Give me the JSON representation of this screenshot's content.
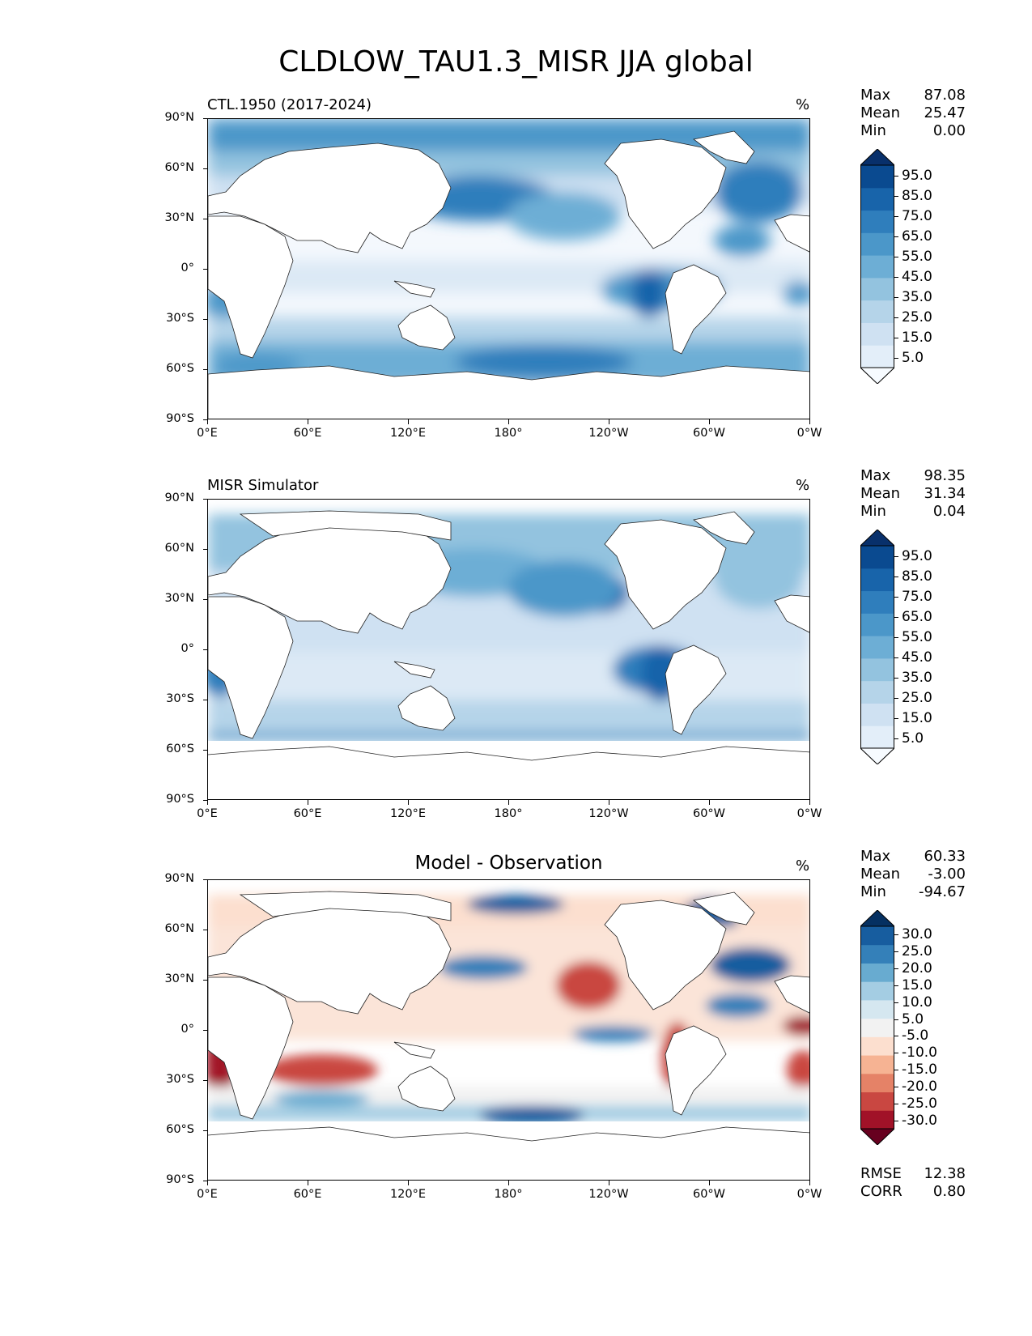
{
  "figure": {
    "title": "CLDLOW_TAU1.3_MISR JJA global"
  },
  "axes": {
    "lat_ticks": [
      "90°N",
      "60°N",
      "30°N",
      "0°",
      "30°S",
      "60°S",
      "90°S"
    ],
    "lon_ticks": [
      "0°E",
      "60°E",
      "120°E",
      "180°",
      "120°W",
      "60°W",
      "0°W"
    ]
  },
  "panels": [
    {
      "label": "CTL.1950 (2017-2024)",
      "center_title": "",
      "units": "%",
      "stats": {
        "max_label": "Max",
        "max": "87.08",
        "mean_label": "Mean",
        "mean": "25.47",
        "min_label": "Min",
        "min": "0.00"
      },
      "colorbar": {
        "labels": [
          "95.0",
          "85.0",
          "75.0",
          "65.0",
          "55.0",
          "45.0",
          "35.0",
          "25.0",
          "15.0",
          "5.0"
        ],
        "colors": [
          "#f7fbff",
          "#e3eef9",
          "#cfe1f2",
          "#b5d4e9",
          "#93c3df",
          "#6daed5",
          "#4b97c9",
          "#2f7ebc",
          "#1864aa",
          "#0a4a90",
          "#08306b"
        ]
      }
    },
    {
      "label": "MISR Simulator",
      "center_title": "",
      "units": "%",
      "stats": {
        "max_label": "Max",
        "max": "98.35",
        "mean_label": "Mean",
        "mean": "31.34",
        "min_label": "Min",
        "min": "0.04"
      },
      "colorbar": {
        "labels": [
          "95.0",
          "85.0",
          "75.0",
          "65.0",
          "55.0",
          "45.0",
          "35.0",
          "25.0",
          "15.0",
          "5.0"
        ],
        "colors": [
          "#f7fbff",
          "#e3eef9",
          "#cfe1f2",
          "#b5d4e9",
          "#93c3df",
          "#6daed5",
          "#4b97c9",
          "#2f7ebc",
          "#1864aa",
          "#0a4a90",
          "#08306b"
        ]
      }
    },
    {
      "label": "",
      "center_title": "Model - Observation",
      "units": "%",
      "stats": {
        "max_label": "Max",
        "max": "60.33",
        "mean_label": "Mean",
        "mean": "-3.00",
        "min_label": "Min",
        "min": "-94.67"
      },
      "colorbar": {
        "labels": [
          "30.0",
          "25.0",
          "20.0",
          "15.0",
          "10.0",
          "5.0",
          "-5.0",
          "-10.0",
          "-15.0",
          "-20.0",
          "-25.0",
          "-30.0"
        ],
        "colors": [
          "#67001f",
          "#a11228",
          "#c94741",
          "#e58267",
          "#f6b393",
          "#fcdfcf",
          "#f2f2f2",
          "#d5e7f0",
          "#a4cde3",
          "#68abd0",
          "#3480b9",
          "#175d9f",
          "#053061"
        ]
      },
      "extra": {
        "rmse_label": "RMSE",
        "rmse": "12.38",
        "corr_label": "CORR",
        "corr": "0.80"
      }
    }
  ]
}
